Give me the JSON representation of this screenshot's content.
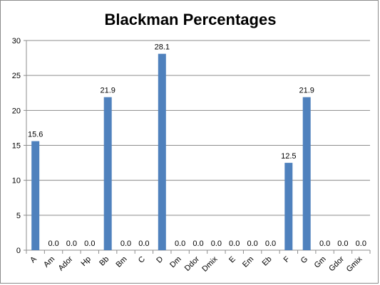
{
  "chart_data": {
    "type": "bar",
    "title": "Blackman Percentages",
    "xlabel": "",
    "ylabel": "",
    "categories": [
      "A",
      "Am",
      "Ador",
      "Hp",
      "Bb",
      "Bm",
      "C",
      "D",
      "Dm",
      "Ddor",
      "Dmix",
      "E",
      "Em",
      "Eb",
      "F",
      "G",
      "Gm",
      "Gdor",
      "Gmix"
    ],
    "values": [
      15.6,
      0.0,
      0.0,
      0.0,
      21.9,
      0.0,
      0.0,
      28.1,
      0.0,
      0.0,
      0.0,
      0.0,
      0.0,
      0.0,
      12.5,
      21.9,
      0.0,
      0.0,
      0.0
    ],
    "data_labels": [
      "15.6",
      "0.0",
      "0.0",
      "0.0",
      "21.9",
      "0.0",
      "0.0",
      "28.1",
      "0.0",
      "0.0",
      "0.0",
      "0.0",
      "0.0",
      "0.0",
      "12.5",
      "21.9",
      "0.0",
      "0.0",
      "0.0"
    ],
    "ylim": [
      0,
      30
    ],
    "yticks": [
      "0",
      "5",
      "10",
      "15",
      "20",
      "25",
      "30"
    ],
    "grid": true,
    "legend": "none",
    "bar_color": "#4f81bd",
    "grid_color": "#8c8c8c"
  }
}
